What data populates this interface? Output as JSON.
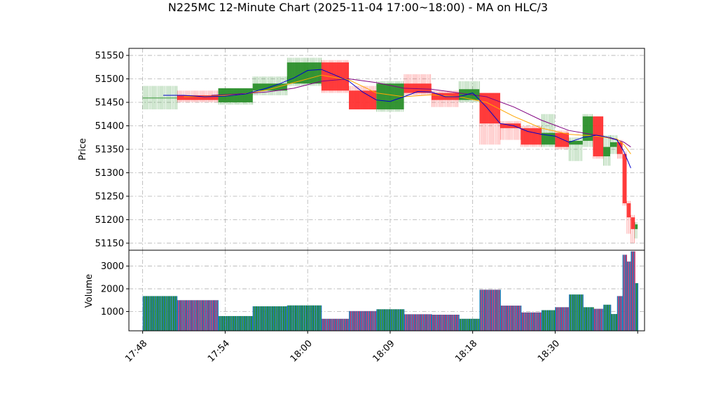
{
  "title": "N225MC 12-Minute Chart (2025-11-04 17:00~18:00) - MA on HLC/3",
  "colors": {
    "up": "#228b22",
    "down": "#ff2a2a",
    "ma_short": "#0000cd",
    "ma_mid": "#ffa500",
    "ma_long": "#800080",
    "vol_a": "#1f77b4",
    "vol_b": "#c0306a"
  },
  "chart_data": [
    {
      "type": "candlestick",
      "ylabel": "Price",
      "ylim": [
        51135,
        51565
      ],
      "yticks": [
        51150,
        51200,
        51250,
        51300,
        51350,
        51400,
        51450,
        51500,
        51550
      ],
      "xlim": [
        -2,
        73
      ],
      "grid": true,
      "xtick_labels": [
        "17:48",
        "17:54",
        "18:00",
        "18:09",
        "18:18",
        "18:30"
      ],
      "xtick_positions": [
        0,
        12,
        24,
        36,
        48,
        60
      ],
      "candles": [
        {
          "x0": 0,
          "x1": 5,
          "open": 51460,
          "high": 51485,
          "low": 51435,
          "close": 51460
        },
        {
          "x0": 5,
          "x1": 11,
          "open": 51465,
          "high": 51475,
          "low": 51450,
          "close": 51455
        },
        {
          "x0": 11,
          "x1": 16,
          "open": 51450,
          "high": 51480,
          "low": 51445,
          "close": 51480
        },
        {
          "x0": 16,
          "x1": 21,
          "open": 51475,
          "high": 51505,
          "low": 51465,
          "close": 51490
        },
        {
          "x0": 21,
          "x1": 26,
          "open": 51490,
          "high": 51545,
          "low": 51485,
          "close": 51535
        },
        {
          "x0": 26,
          "x1": 30,
          "open": 51535,
          "high": 51540,
          "low": 51470,
          "close": 51475
        },
        {
          "x0": 30,
          "x1": 34,
          "open": 51475,
          "high": 51485,
          "low": 51435,
          "close": 51435
        },
        {
          "x0": 34,
          "x1": 38,
          "open": 51435,
          "high": 51495,
          "low": 51430,
          "close": 51490
        },
        {
          "x0": 38,
          "x1": 42,
          "open": 51490,
          "high": 51510,
          "low": 51465,
          "close": 51470
        },
        {
          "x0": 42,
          "x1": 46,
          "open": 51470,
          "high": 51475,
          "low": 51440,
          "close": 51455
        },
        {
          "x0": 46,
          "x1": 49,
          "open": 51455,
          "high": 51495,
          "low": 51450,
          "close": 51478
        },
        {
          "x0": 49,
          "x1": 52,
          "open": 51470,
          "high": 51470,
          "low": 51360,
          "close": 51405
        },
        {
          "x0": 52,
          "x1": 55,
          "open": 51405,
          "high": 51410,
          "low": 51370,
          "close": 51395
        },
        {
          "x0": 55,
          "x1": 58,
          "open": 51395,
          "high": 51400,
          "low": 51355,
          "close": 51360
        },
        {
          "x0": 58,
          "x1": 60,
          "open": 51360,
          "high": 51425,
          "low": 51355,
          "close": 51385
        },
        {
          "x0": 60,
          "x1": 62,
          "open": 51385,
          "high": 51390,
          "low": 51350,
          "close": 51355
        },
        {
          "x0": 62,
          "x1": 64,
          "open": 51360,
          "high": 51375,
          "low": 51325,
          "close": 51368
        },
        {
          "x0": 64,
          "x1": 65.5,
          "open": 51368,
          "high": 51425,
          "low": 51355,
          "close": 51420
        },
        {
          "x0": 65.5,
          "x1": 67,
          "open": 51420,
          "high": 51420,
          "low": 51330,
          "close": 51335
        },
        {
          "x0": 67,
          "x1": 68,
          "open": 51335,
          "high": 51380,
          "low": 51315,
          "close": 51355
        },
        {
          "x0": 68,
          "x1": 69,
          "open": 51355,
          "high": 51380,
          "low": 51340,
          "close": 51365
        },
        {
          "x0": 69,
          "x1": 69.8,
          "open": 51365,
          "high": 51370,
          "low": 51330,
          "close": 51340
        },
        {
          "x0": 69.8,
          "x1": 70.4,
          "open": 51340,
          "high": 51345,
          "low": 51230,
          "close": 51235
        },
        {
          "x0": 70.4,
          "x1": 71,
          "open": 51235,
          "high": 51240,
          "low": 51170,
          "close": 51205
        },
        {
          "x0": 71,
          "x1": 71.6,
          "open": 51205,
          "high": 51210,
          "low": 51150,
          "close": 51180
        },
        {
          "x0": 71.6,
          "x1": 72,
          "open": 51180,
          "high": 51195,
          "low": 51160,
          "close": 51190
        }
      ],
      "ma_short": [
        [
          3,
          51465
        ],
        [
          6,
          51465
        ],
        [
          9,
          51462
        ],
        [
          12,
          51463
        ],
        [
          15,
          51468
        ],
        [
          18,
          51480
        ],
        [
          20,
          51490
        ],
        [
          22,
          51502
        ],
        [
          24,
          51518
        ],
        [
          26,
          51520
        ],
        [
          28,
          51508
        ],
        [
          30,
          51495
        ],
        [
          32,
          51472
        ],
        [
          34,
          51455
        ],
        [
          36,
          51452
        ],
        [
          38,
          51462
        ],
        [
          40,
          51473
        ],
        [
          42,
          51472
        ],
        [
          44,
          51462
        ],
        [
          46,
          51462
        ],
        [
          48,
          51470
        ],
        [
          50,
          51440
        ],
        [
          52,
          51405
        ],
        [
          54,
          51400
        ],
        [
          56,
          51388
        ],
        [
          58,
          51382
        ],
        [
          60,
          51378
        ],
        [
          62,
          51365
        ],
        [
          64,
          51375
        ],
        [
          66,
          51380
        ],
        [
          68,
          51375
        ],
        [
          69,
          51370
        ],
        [
          70,
          51345
        ],
        [
          71,
          51310
        ]
      ],
      "ma_mid": [
        [
          6,
          51462
        ],
        [
          10,
          51463
        ],
        [
          14,
          51466
        ],
        [
          18,
          51476
        ],
        [
          22,
          51492
        ],
        [
          26,
          51508
        ],
        [
          30,
          51498
        ],
        [
          34,
          51470
        ],
        [
          38,
          51462
        ],
        [
          42,
          51466
        ],
        [
          46,
          51462
        ],
        [
          50,
          51450
        ],
        [
          54,
          51420
        ],
        [
          58,
          51395
        ],
        [
          62,
          51382
        ],
        [
          66,
          51378
        ],
        [
          69,
          51372
        ],
        [
          70,
          51360
        ],
        [
          71,
          51340
        ]
      ],
      "ma_long": [
        [
          10,
          51465
        ],
        [
          14,
          51468
        ],
        [
          18,
          51472
        ],
        [
          22,
          51480
        ],
        [
          26,
          51495
        ],
        [
          30,
          51500
        ],
        [
          34,
          51492
        ],
        [
          38,
          51480
        ],
        [
          42,
          51478
        ],
        [
          46,
          51470
        ],
        [
          50,
          51462
        ],
        [
          54,
          51440
        ],
        [
          58,
          51412
        ],
        [
          62,
          51390
        ],
        [
          66,
          51380
        ],
        [
          69,
          51370
        ],
        [
          70,
          51365
        ],
        [
          71,
          51355
        ]
      ]
    },
    {
      "type": "bar",
      "ylabel": "Volume",
      "ylim": [
        150,
        3700
      ],
      "yticks": [
        1000,
        2000,
        3000
      ],
      "grid": true,
      "bars": [
        {
          "x0": 0,
          "x1": 5,
          "value": 1680
        },
        {
          "x0": 5,
          "x1": 11,
          "value": 1500
        },
        {
          "x0": 11,
          "x1": 16,
          "value": 800
        },
        {
          "x0": 16,
          "x1": 21,
          "value": 1230
        },
        {
          "x0": 21,
          "x1": 26,
          "value": 1270
        },
        {
          "x0": 26,
          "x1": 30,
          "value": 680
        },
        {
          "x0": 30,
          "x1": 34,
          "value": 1020
        },
        {
          "x0": 34,
          "x1": 38,
          "value": 1100
        },
        {
          "x0": 38,
          "x1": 42,
          "value": 880
        },
        {
          "x0": 42,
          "x1": 46,
          "value": 860
        },
        {
          "x0": 46,
          "x1": 49,
          "value": 680
        },
        {
          "x0": 49,
          "x1": 52,
          "value": 1960
        },
        {
          "x0": 52,
          "x1": 55,
          "value": 1260
        },
        {
          "x0": 55,
          "x1": 58,
          "value": 960
        },
        {
          "x0": 58,
          "x1": 60,
          "value": 1060
        },
        {
          "x0": 60,
          "x1": 62,
          "value": 1190
        },
        {
          "x0": 62,
          "x1": 64,
          "value": 1750
        },
        {
          "x0": 64,
          "x1": 65.5,
          "value": 1190
        },
        {
          "x0": 65.5,
          "x1": 67,
          "value": 1120
        },
        {
          "x0": 67,
          "x1": 68,
          "value": 1300
        },
        {
          "x0": 68,
          "x1": 69,
          "value": 890
        },
        {
          "x0": 69,
          "x1": 69.8,
          "value": 1680
        },
        {
          "x0": 69.8,
          "x1": 70.4,
          "value": 3500
        },
        {
          "x0": 70.4,
          "x1": 71,
          "value": 3200
        },
        {
          "x0": 71,
          "x1": 71.6,
          "value": 3650
        },
        {
          "x0": 71.6,
          "x1": 72,
          "value": 2250
        }
      ]
    }
  ]
}
